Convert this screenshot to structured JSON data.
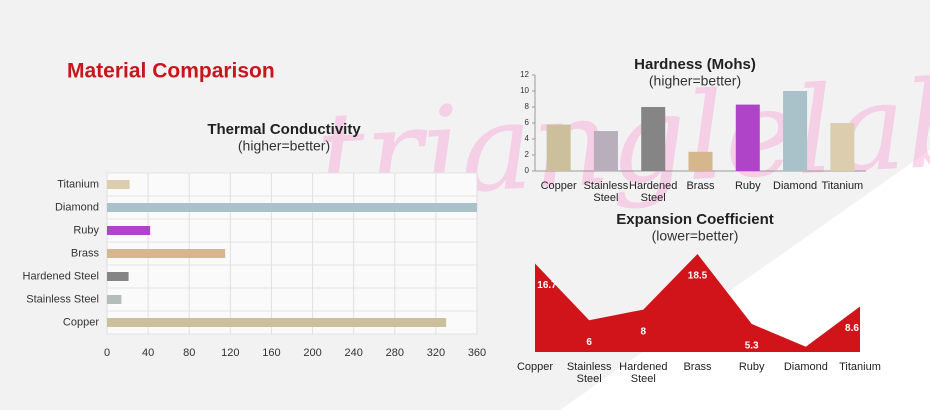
{
  "title": "Material Comparison",
  "watermark": "trianglelab",
  "chart_data": [
    {
      "type": "hbar",
      "title": "Thermal Conductivity",
      "subtitle": "(higher=better)",
      "categories": [
        "Titanium",
        "Diamond",
        "Ruby",
        "Brass",
        "Hardened Steel",
        "Stainless Steel",
        "Copper"
      ],
      "values": [
        22,
        360,
        42,
        115,
        21,
        14,
        330
      ],
      "colors": [
        "#dccdae",
        "#a9c1c9",
        "#b044c8",
        "#d6b68c",
        "#858585",
        "#b4bcbc",
        "#cbbf9c"
      ],
      "xlim": [
        0,
        360
      ],
      "xticks": [
        0,
        40,
        80,
        120,
        160,
        200,
        240,
        280,
        320,
        360
      ],
      "grid": true
    },
    {
      "type": "bar",
      "title": "Hardness (Mohs)",
      "subtitle": "(higher=better)",
      "categories": [
        "Copper",
        "Stainless Steel",
        "Hardened Steel",
        "Brass",
        "Ruby",
        "Diamond",
        "Titanium"
      ],
      "values": [
        5.8,
        5,
        8,
        2.4,
        8.3,
        10,
        6
      ],
      "colors": [
        "#cbbf9c",
        "#b8aebc",
        "#858585",
        "#d6b68c",
        "#b044c8",
        "#a9c1c9",
        "#dccdae"
      ],
      "ylim": [
        0,
        12
      ],
      "yticks": [
        0,
        2,
        4,
        6,
        8,
        10,
        12
      ]
    },
    {
      "type": "area",
      "title": "Expansion Coefficient",
      "subtitle": "(lower=better)",
      "categories": [
        "Copper",
        "Stainless Steel",
        "Hardened Steel",
        "Brass",
        "Ruby",
        "Diamond",
        "Titanium"
      ],
      "values": [
        16.7,
        6,
        8,
        18.5,
        5.3,
        1,
        8.6
      ],
      "value_labels": [
        "16.7",
        "6",
        "8",
        "18.5",
        "5.3",
        null,
        "8.6"
      ],
      "color": "#d0141a"
    }
  ]
}
